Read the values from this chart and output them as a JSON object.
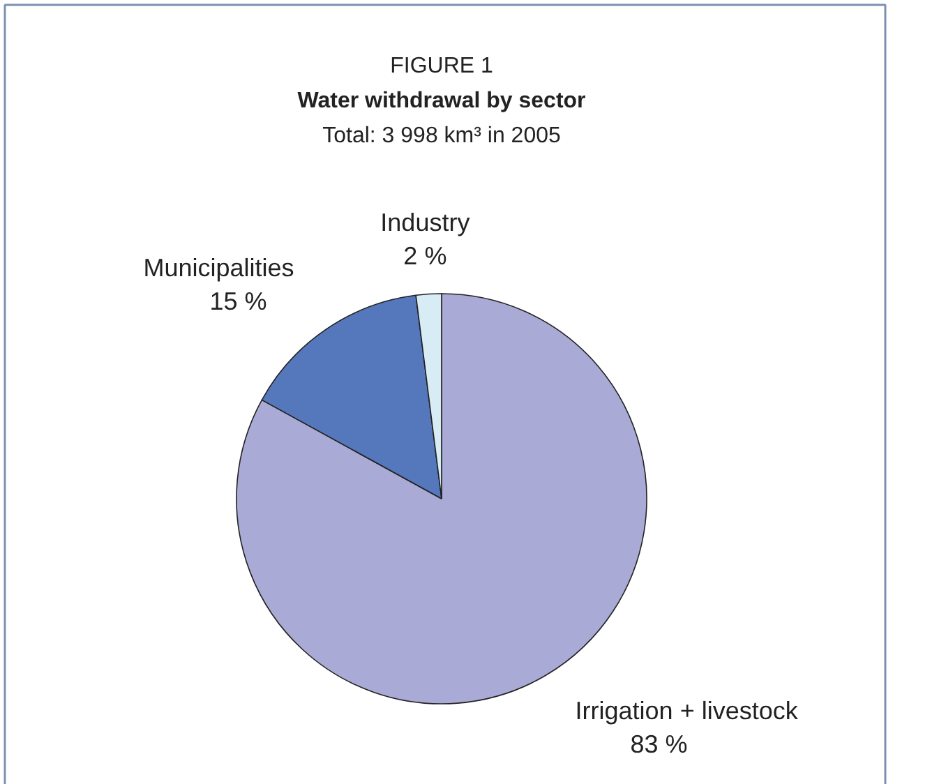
{
  "chart_data": {
    "type": "pie",
    "title": "Water withdrawal by sector",
    "subtitle": "Total: 3 998 km³ in 2005",
    "annotations": [
      "FIGURE 1"
    ],
    "categories": [
      "Irrigation + livestock",
      "Municipalities",
      "Industry"
    ],
    "values": [
      83,
      15,
      2
    ],
    "value_labels": [
      "83 %",
      "15 %",
      "2 %"
    ],
    "colors": [
      "#aaaad6",
      "#5577bb",
      "#d8ecf6"
    ]
  }
}
